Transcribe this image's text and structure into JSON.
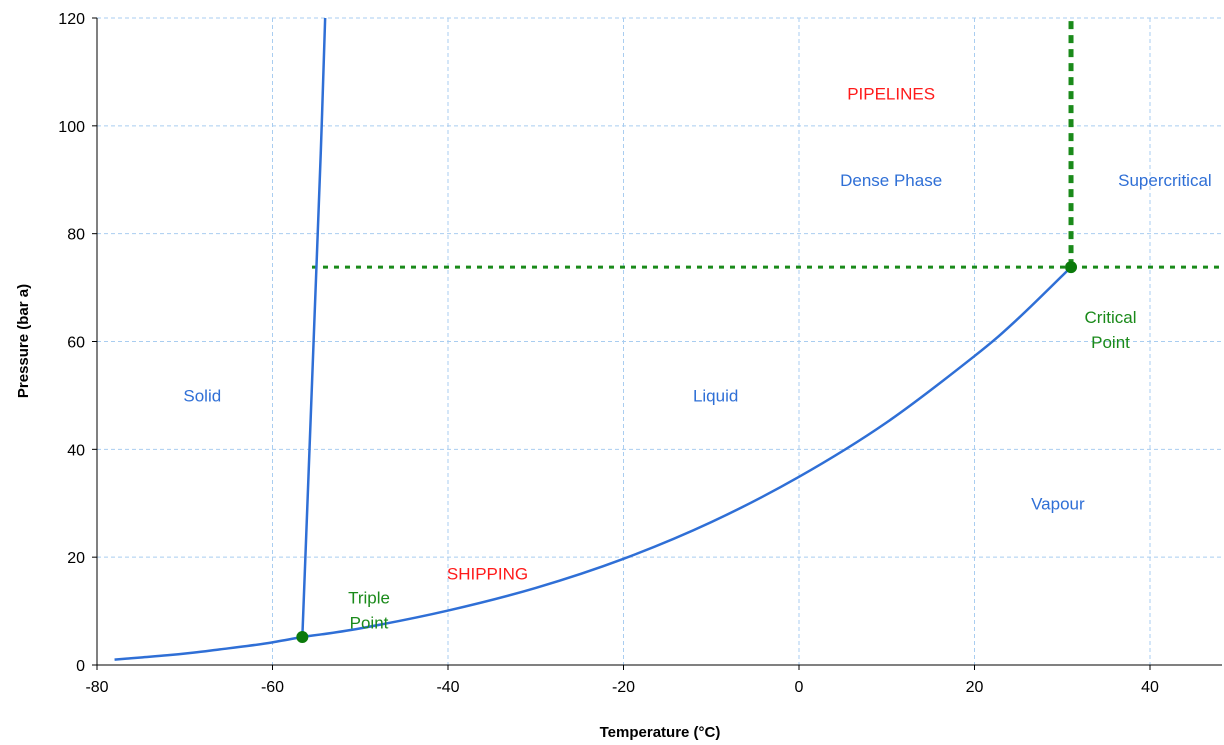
{
  "chart_data": {
    "type": "line",
    "title": "",
    "xlabel": "Temperature (°C)",
    "ylabel": "Pressure (bar a)",
    "xlim": [
      -80,
      48
    ],
    "ylim": [
      0,
      120
    ],
    "xticks": [
      -80,
      -60,
      -40,
      -20,
      0,
      20,
      40
    ],
    "yticks": [
      0,
      20,
      40,
      60,
      80,
      100,
      120
    ],
    "grid": true,
    "colors": {
      "curve": "#2f6fd6",
      "grid": "#a9cdf0",
      "critical_lines": "#1a8a1a",
      "point": "#0b7a0b",
      "region_text": "#2f6fd6",
      "transport_text": "#ff1a1a",
      "point_text": "#1a8a1a",
      "axis": "#000000"
    },
    "series": [
      {
        "role": "sublimation",
        "x": [
          -78,
          -75,
          -72,
          -69,
          -66,
          -63,
          -60,
          -56.6
        ],
        "y": [
          1.0,
          1.4,
          1.8,
          2.3,
          2.9,
          3.5,
          4.2,
          5.2
        ]
      },
      {
        "role": "melting",
        "x": [
          -56.6,
          -55.9,
          -55.2,
          -54.5,
          -54.0
        ],
        "y": [
          5.2,
          35,
          65,
          95,
          120
        ]
      },
      {
        "role": "vaporization",
        "x": [
          -56.6,
          -50,
          -40,
          -30,
          -20,
          -10,
          0,
          10,
          20,
          25,
          31.0
        ],
        "y": [
          5.2,
          6.8,
          10.1,
          14.3,
          19.7,
          26.5,
          34.9,
          45.0,
          57.3,
          64.3,
          73.8
        ]
      }
    ],
    "reference_lines": [
      {
        "role": "critical-pressure",
        "x": [
          -55.5,
          48
        ],
        "y": [
          73.8,
          73.8
        ]
      },
      {
        "role": "critical-temperature",
        "x": [
          31.0,
          31.0
        ],
        "y": [
          73.8,
          120
        ]
      }
    ],
    "points": [
      {
        "role": "triple-point",
        "x": -56.6,
        "y": 5.2
      },
      {
        "role": "critical-point",
        "x": 31.0,
        "y": 73.8
      }
    ],
    "annotations": [
      {
        "role": "region",
        "lines": [
          "Solid"
        ],
        "x": -68,
        "y": 50,
        "color": "#2f6fd6"
      },
      {
        "role": "region",
        "lines": [
          "Liquid"
        ],
        "x": -9.5,
        "y": 50,
        "color": "#2f6fd6"
      },
      {
        "role": "region",
        "lines": [
          "Vapour"
        ],
        "x": 29.5,
        "y": 30,
        "color": "#2f6fd6"
      },
      {
        "role": "region",
        "lines": [
          "Dense Phase"
        ],
        "x": 10.5,
        "y": 90,
        "color": "#2f6fd6"
      },
      {
        "role": "region",
        "lines": [
          "Supercritical"
        ],
        "x": 41.7,
        "y": 90,
        "color": "#2f6fd6"
      },
      {
        "role": "transport",
        "lines": [
          "PIPELINES"
        ],
        "x": 10.5,
        "y": 106,
        "color": "#ff1a1a"
      },
      {
        "role": "transport",
        "lines": [
          "SHIPPING"
        ],
        "x": -35.5,
        "y": 17,
        "color": "#ff1a1a"
      },
      {
        "role": "point-label",
        "lines": [
          "Triple",
          "Point"
        ],
        "x": -49,
        "y": 12.5,
        "color": "#1a8a1a"
      },
      {
        "role": "point-label",
        "lines": [
          "Critical",
          "Point"
        ],
        "x": 35.5,
        "y": 64.5,
        "color": "#1a8a1a"
      }
    ]
  }
}
